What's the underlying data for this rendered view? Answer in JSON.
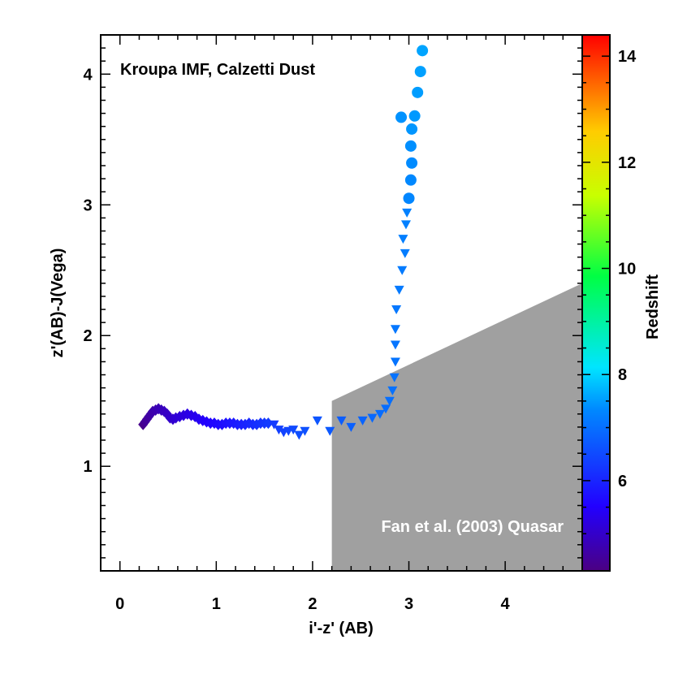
{
  "chart_data": {
    "type": "scatter",
    "xlabel": "i'-z' (AB)",
    "ylabel": "z'(AB)-J(Vega)",
    "xlim": [
      -0.2,
      4.8
    ],
    "ylim": [
      0.2,
      4.3
    ],
    "xticks": [
      0,
      1,
      2,
      3,
      4
    ],
    "xtick_labels": [
      "0",
      "1",
      "2",
      "3",
      "4"
    ],
    "yticks": [
      1,
      2,
      3,
      4
    ],
    "ytick_labels": [
      "1",
      "2",
      "3",
      "4"
    ],
    "annotation_top": "Kroupa IMF, Calzetti Dust",
    "region": {
      "label": "Fan et al. (2003) Quasar",
      "polygon": [
        [
          2.2,
          0.2
        ],
        [
          2.2,
          1.5
        ],
        [
          4.8,
          2.4
        ],
        [
          4.8,
          0.2
        ]
      ],
      "color": "#a0a0a0"
    },
    "colorbar": {
      "label": "Redshift",
      "range": [
        4.3,
        14.4
      ],
      "ticks": [
        6,
        8,
        10,
        12,
        14
      ],
      "tick_labels": [
        "6",
        "8",
        "10",
        "12",
        "14"
      ]
    },
    "series": [
      {
        "name": "diamonds",
        "marker": "diamond",
        "points": [
          {
            "x": 0.24,
            "y": 1.32,
            "z": 4.4
          },
          {
            "x": 0.26,
            "y": 1.34,
            "z": 4.5
          },
          {
            "x": 0.28,
            "y": 1.36,
            "z": 4.55
          },
          {
            "x": 0.3,
            "y": 1.38,
            "z": 4.6
          },
          {
            "x": 0.32,
            "y": 1.4,
            "z": 4.65
          },
          {
            "x": 0.34,
            "y": 1.42,
            "z": 4.7
          },
          {
            "x": 0.37,
            "y": 1.43,
            "z": 4.75
          },
          {
            "x": 0.4,
            "y": 1.44,
            "z": 4.8
          },
          {
            "x": 0.43,
            "y": 1.43,
            "z": 4.85
          },
          {
            "x": 0.46,
            "y": 1.42,
            "z": 4.9
          },
          {
            "x": 0.49,
            "y": 1.4,
            "z": 4.95
          },
          {
            "x": 0.52,
            "y": 1.37,
            "z": 5.0
          },
          {
            "x": 0.55,
            "y": 1.36,
            "z": 5.05
          },
          {
            "x": 0.58,
            "y": 1.37,
            "z": 5.1
          },
          {
            "x": 0.62,
            "y": 1.38,
            "z": 5.15
          },
          {
            "x": 0.66,
            "y": 1.39,
            "z": 5.2
          },
          {
            "x": 0.7,
            "y": 1.4,
            "z": 5.25
          },
          {
            "x": 0.74,
            "y": 1.39,
            "z": 5.3
          },
          {
            "x": 0.78,
            "y": 1.38,
            "z": 5.35
          },
          {
            "x": 0.82,
            "y": 1.36,
            "z": 5.4
          },
          {
            "x": 0.86,
            "y": 1.35,
            "z": 5.45
          },
          {
            "x": 0.9,
            "y": 1.34,
            "z": 5.5
          },
          {
            "x": 0.94,
            "y": 1.33,
            "z": 5.55
          },
          {
            "x": 0.98,
            "y": 1.33,
            "z": 5.6
          },
          {
            "x": 1.02,
            "y": 1.32,
            "z": 5.65
          },
          {
            "x": 1.06,
            "y": 1.32,
            "z": 5.7
          },
          {
            "x": 1.1,
            "y": 1.33,
            "z": 5.75
          },
          {
            "x": 1.14,
            "y": 1.33,
            "z": 5.8
          },
          {
            "x": 1.18,
            "y": 1.33,
            "z": 5.85
          },
          {
            "x": 1.22,
            "y": 1.32,
            "z": 5.9
          },
          {
            "x": 1.26,
            "y": 1.32,
            "z": 5.95
          },
          {
            "x": 1.3,
            "y": 1.32,
            "z": 6.0
          },
          {
            "x": 1.34,
            "y": 1.33,
            "z": 6.05
          },
          {
            "x": 1.38,
            "y": 1.32,
            "z": 6.1
          },
          {
            "x": 1.42,
            "y": 1.32,
            "z": 6.15
          },
          {
            "x": 1.46,
            "y": 1.33,
            "z": 6.2
          },
          {
            "x": 1.5,
            "y": 1.33,
            "z": 6.25
          },
          {
            "x": 1.54,
            "y": 1.33,
            "z": 6.3
          }
        ]
      },
      {
        "name": "triangles",
        "marker": "triangle-down",
        "points": [
          {
            "x": 1.6,
            "y": 1.32,
            "z": 6.3
          },
          {
            "x": 1.65,
            "y": 1.28,
            "z": 6.35
          },
          {
            "x": 1.7,
            "y": 1.26,
            "z": 6.4
          },
          {
            "x": 1.75,
            "y": 1.27,
            "z": 6.45
          },
          {
            "x": 1.8,
            "y": 1.28,
            "z": 6.5
          },
          {
            "x": 1.86,
            "y": 1.24,
            "z": 6.55
          },
          {
            "x": 1.92,
            "y": 1.27,
            "z": 6.6
          },
          {
            "x": 2.05,
            "y": 1.35,
            "z": 6.65
          },
          {
            "x": 2.18,
            "y": 1.27,
            "z": 6.7
          },
          {
            "x": 2.3,
            "y": 1.35,
            "z": 6.75
          },
          {
            "x": 2.4,
            "y": 1.3,
            "z": 6.8
          },
          {
            "x": 2.52,
            "y": 1.35,
            "z": 6.85
          },
          {
            "x": 2.62,
            "y": 1.37,
            "z": 6.9
          },
          {
            "x": 2.7,
            "y": 1.4,
            "z": 6.95
          },
          {
            "x": 2.76,
            "y": 1.44,
            "z": 6.97
          },
          {
            "x": 2.8,
            "y": 1.5,
            "z": 7.0
          },
          {
            "x": 2.83,
            "y": 1.58,
            "z": 7.02
          },
          {
            "x": 2.85,
            "y": 1.68,
            "z": 7.04
          },
          {
            "x": 2.86,
            "y": 1.8,
            "z": 7.06
          },
          {
            "x": 2.86,
            "y": 1.93,
            "z": 7.08
          },
          {
            "x": 2.86,
            "y": 2.05,
            "z": 7.1
          },
          {
            "x": 2.87,
            "y": 2.2,
            "z": 7.12
          },
          {
            "x": 2.9,
            "y": 2.35,
            "z": 7.14
          },
          {
            "x": 2.93,
            "y": 2.5,
            "z": 7.16
          },
          {
            "x": 2.96,
            "y": 2.63,
            "z": 7.18
          },
          {
            "x": 2.94,
            "y": 2.74,
            "z": 7.2
          },
          {
            "x": 2.97,
            "y": 2.85,
            "z": 7.22
          },
          {
            "x": 2.98,
            "y": 2.94,
            "z": 7.24
          }
        ]
      },
      {
        "name": "circles",
        "marker": "circle",
        "points": [
          {
            "x": 3.0,
            "y": 3.05,
            "z": 7.3
          },
          {
            "x": 3.02,
            "y": 3.19,
            "z": 7.33
          },
          {
            "x": 3.03,
            "y": 3.32,
            "z": 7.36
          },
          {
            "x": 3.02,
            "y": 3.45,
            "z": 7.39
          },
          {
            "x": 2.92,
            "y": 3.67,
            "z": 7.42
          },
          {
            "x": 3.03,
            "y": 3.58,
            "z": 7.45
          },
          {
            "x": 3.06,
            "y": 3.68,
            "z": 7.48
          },
          {
            "x": 3.09,
            "y": 3.86,
            "z": 7.51
          },
          {
            "x": 3.12,
            "y": 4.02,
            "z": 7.54
          },
          {
            "x": 3.14,
            "y": 4.18,
            "z": 7.57
          }
        ]
      }
    ]
  }
}
